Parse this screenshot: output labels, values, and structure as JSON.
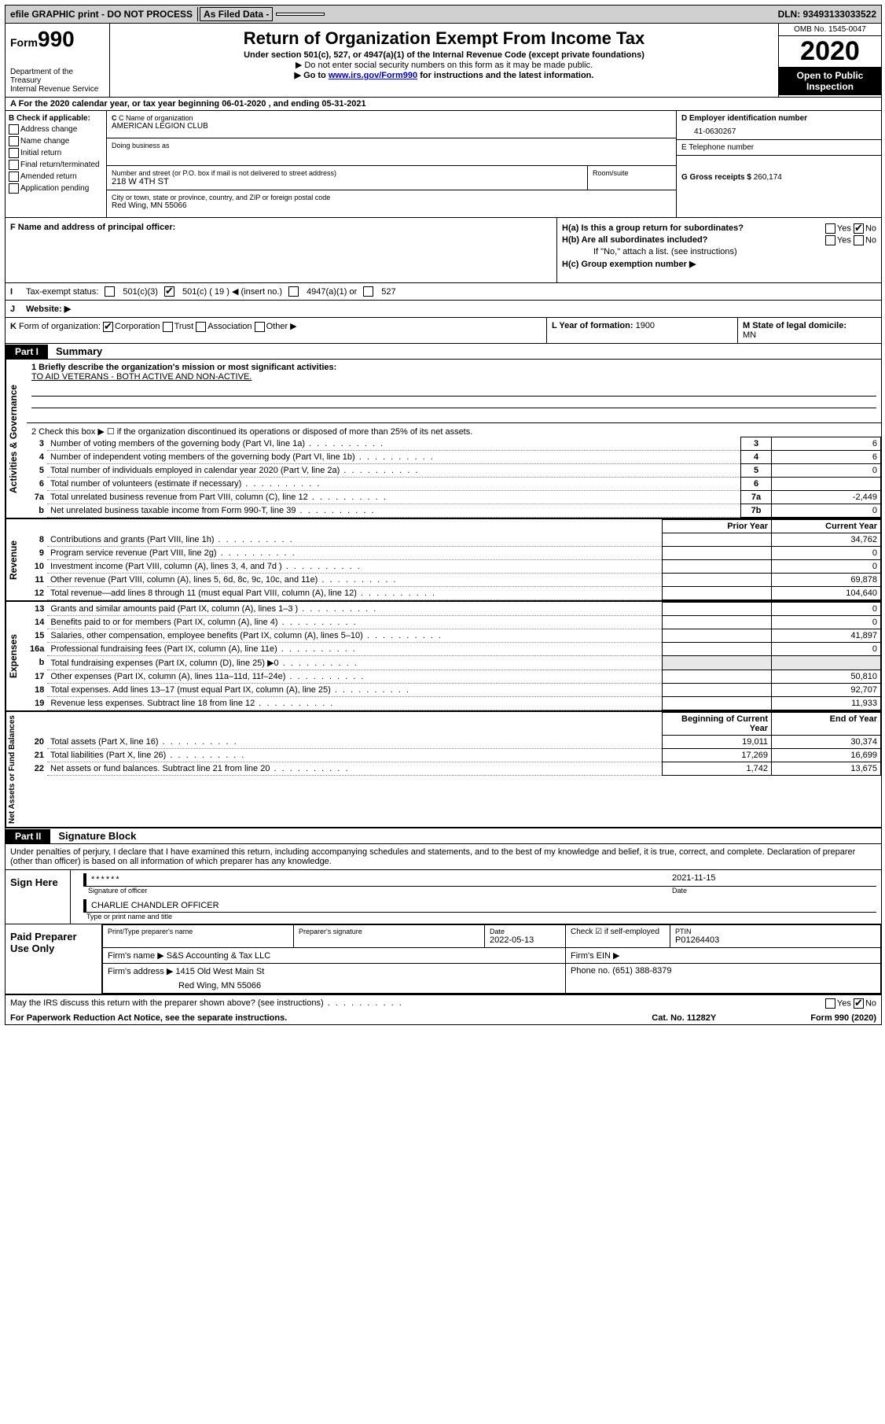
{
  "topbar": {
    "efile": "efile GRAPHIC print - DO NOT PROCESS",
    "asfiled": "As Filed Data -",
    "dln": "DLN: 93493133033522"
  },
  "header": {
    "form_prefix": "Form",
    "form_number": "990",
    "title": "Return of Organization Exempt From Income Tax",
    "subtitle": "Under section 501(c), 527, or 4947(a)(1) of the Internal Revenue Code (except private foundations)",
    "line2": "▶ Do not enter social security numbers on this form as it may be made public.",
    "line3_pre": "▶ Go to ",
    "line3_link": "www.irs.gov/Form990",
    "line3_post": " for instructions and the latest information.",
    "dept1": "Department of the Treasury",
    "dept2": "Internal Revenue Service",
    "omb": "OMB No. 1545-0047",
    "year": "2020",
    "open": "Open to Public Inspection"
  },
  "rowA": "A   For the 2020 calendar year, or tax year beginning 06-01-2020   , and ending 05-31-2021",
  "colB": {
    "header": "B Check if applicable:",
    "items": [
      "Address change",
      "Name change",
      "Initial return",
      "Final return/terminated",
      "Amended return",
      "Application pending"
    ]
  },
  "colC": {
    "name_lbl": "C Name of organization",
    "name": "AMERICAN LEGION CLUB",
    "dba_lbl": "Doing business as",
    "dba": "",
    "street_lbl": "Number and street (or P.O. box if mail is not delivered to street address)",
    "street": "218 W 4TH ST",
    "room_lbl": "Room/suite",
    "room": "",
    "city_lbl": "City or town, state or province, country, and ZIP or foreign postal code",
    "city": "Red Wing, MN  55066",
    "f_lbl": "F   Name and address of principal officer:",
    "f_val": ""
  },
  "colDE": {
    "d_lbl": "D Employer identification number",
    "d_val": "41-0630267",
    "e_lbl": "E Telephone number",
    "e_val": "",
    "g_lbl": "G Gross receipts $",
    "g_val": "260,174"
  },
  "colH": {
    "ha": "H(a)  Is this a group return for subordinates?",
    "ha_yes": "Yes",
    "ha_no": "No",
    "hb": "H(b)  Are all subordinates included?",
    "hb_yes": "Yes",
    "hb_no": "No",
    "hb_note": "If \"No,\" attach a list. (see instructions)",
    "hc": "H(c)  Group exemption number ▶"
  },
  "rowI": {
    "lead": "I",
    "label": "Tax-exempt status:",
    "opt1": "501(c)(3)",
    "opt2_pre": "501(c) (",
    "opt2_num": "19",
    "opt2_post": ") ◀ (insert no.)",
    "opt3": "4947(a)(1) or",
    "opt4": "527"
  },
  "rowJ": {
    "lead": "J",
    "label": "Website: ▶",
    "val": ""
  },
  "rowK": {
    "lead": "K",
    "label": "Form of organization:",
    "opts": [
      "Corporation",
      "Trust",
      "Association",
      "Other ▶"
    ],
    "checked": 0,
    "l_lbl": "L Year of formation:",
    "l_val": "1900",
    "m_lbl": "M State of legal domicile:",
    "m_val": "MN"
  },
  "partI": {
    "tab": "Part I",
    "title": "Summary",
    "line1_lbl": "1  Briefly describe the organization's mission or most significant activities:",
    "line1_val": "TO AID VETERANS - BOTH ACTIVE AND NON-ACTIVE.",
    "line2": "2   Check this box ▶ ☐ if the organization discontinued its operations or disposed of more than 25% of its net assets.",
    "sections": {
      "gov": {
        "label": "Activities & Governance",
        "rows": [
          {
            "n": "3",
            "d": "Number of voting members of the governing body (Part VI, line 1a)",
            "k": "3",
            "v": "6"
          },
          {
            "n": "4",
            "d": "Number of independent voting members of the governing body (Part VI, line 1b)",
            "k": "4",
            "v": "6"
          },
          {
            "n": "5",
            "d": "Total number of individuals employed in calendar year 2020 (Part V, line 2a)",
            "k": "5",
            "v": "0"
          },
          {
            "n": "6",
            "d": "Total number of volunteers (estimate if necessary)",
            "k": "6",
            "v": ""
          },
          {
            "n": "7a",
            "d": "Total unrelated business revenue from Part VIII, column (C), line 12",
            "k": "7a",
            "v": "-2,449"
          },
          {
            "n": "b",
            "d": "Net unrelated business taxable income from Form 990-T, line 39",
            "k": "7b",
            "v": "0"
          }
        ]
      },
      "rev": {
        "label": "Revenue",
        "header_prior": "Prior Year",
        "header_curr": "Current Year",
        "rows": [
          {
            "n": "8",
            "d": "Contributions and grants (Part VIII, line 1h)",
            "p": "",
            "c": "34,762"
          },
          {
            "n": "9",
            "d": "Program service revenue (Part VIII, line 2g)",
            "p": "",
            "c": "0"
          },
          {
            "n": "10",
            "d": "Investment income (Part VIII, column (A), lines 3, 4, and 7d )",
            "p": "",
            "c": "0"
          },
          {
            "n": "11",
            "d": "Other revenue (Part VIII, column (A), lines 5, 6d, 8c, 9c, 10c, and 11e)",
            "p": "",
            "c": "69,878"
          },
          {
            "n": "12",
            "d": "Total revenue—add lines 8 through 11 (must equal Part VIII, column (A), line 12)",
            "p": "",
            "c": "104,640"
          }
        ]
      },
      "exp": {
        "label": "Expenses",
        "rows": [
          {
            "n": "13",
            "d": "Grants and similar amounts paid (Part IX, column (A), lines 1–3 )",
            "p": "",
            "c": "0"
          },
          {
            "n": "14",
            "d": "Benefits paid to or for members (Part IX, column (A), line 4)",
            "p": "",
            "c": "0"
          },
          {
            "n": "15",
            "d": "Salaries, other compensation, employee benefits (Part IX, column (A), lines 5–10)",
            "p": "",
            "c": "41,897"
          },
          {
            "n": "16a",
            "d": "Professional fundraising fees (Part IX, column (A), line 11e)",
            "p": "",
            "c": "0"
          },
          {
            "n": "b",
            "d": "Total fundraising expenses (Part IX, column (D), line 25) ▶0",
            "p": "shade",
            "c": "shade"
          },
          {
            "n": "17",
            "d": "Other expenses (Part IX, column (A), lines 11a–11d, 11f–24e)",
            "p": "",
            "c": "50,810"
          },
          {
            "n": "18",
            "d": "Total expenses. Add lines 13–17 (must equal Part IX, column (A), line 25)",
            "p": "",
            "c": "92,707"
          },
          {
            "n": "19",
            "d": "Revenue less expenses. Subtract line 18 from line 12",
            "p": "",
            "c": "11,933"
          }
        ]
      },
      "net": {
        "label": "Net Assets or Fund Balances",
        "header_prior": "Beginning of Current Year",
        "header_curr": "End of Year",
        "rows": [
          {
            "n": "20",
            "d": "Total assets (Part X, line 16)",
            "p": "19,011",
            "c": "30,374"
          },
          {
            "n": "21",
            "d": "Total liabilities (Part X, line 26)",
            "p": "17,269",
            "c": "16,699"
          },
          {
            "n": "22",
            "d": "Net assets or fund balances. Subtract line 21 from line 20",
            "p": "1,742",
            "c": "13,675"
          }
        ]
      }
    }
  },
  "partII": {
    "tab": "Part II",
    "title": "Signature Block",
    "intro": "Under penalties of perjury, I declare that I have examined this return, including accompanying schedules and statements, and to the best of my knowledge and belief, it is true, correct, and complete. Declaration of preparer (other than officer) is based on all information of which preparer has any knowledge.",
    "sign_here": "Sign Here",
    "sig_stars": "******",
    "sig_of_officer": "Signature of officer",
    "sig_date": "2021-11-15",
    "date_lbl": "Date",
    "officer_name": "CHARLIE CHANDLER OFFICER",
    "type_name_lbl": "Type or print name and title",
    "paid": "Paid Preparer Use Only",
    "prep_name_lbl": "Print/Type preparer's name",
    "prep_name": "",
    "prep_sig_lbl": "Preparer's signature",
    "prep_sig": "",
    "prep_date_lbl": "Date",
    "prep_date": "2022-05-13",
    "check_if": "Check ☑ if self-employed",
    "ptin_lbl": "PTIN",
    "ptin": "P01264403",
    "firm_name_lbl": "Firm's name    ▶",
    "firm_name": "S&S Accounting & Tax LLC",
    "firm_ein_lbl": "Firm's EIN ▶",
    "firm_ein": "",
    "firm_addr_lbl": "Firm's address ▶",
    "firm_addr1": "1415 Old West Main St",
    "firm_addr2": "Red Wing, MN  55066",
    "phone_lbl": "Phone no.",
    "phone": "(651) 388-8379",
    "discuss": "May the IRS discuss this return with the preparer shown above? (see instructions)",
    "discuss_yes": "Yes",
    "discuss_no": "No"
  },
  "footer": {
    "paperwork": "For Paperwork Reduction Act Notice, see the separate instructions.",
    "catno": "Cat. No. 11282Y",
    "form": "Form 990 (2020)"
  }
}
